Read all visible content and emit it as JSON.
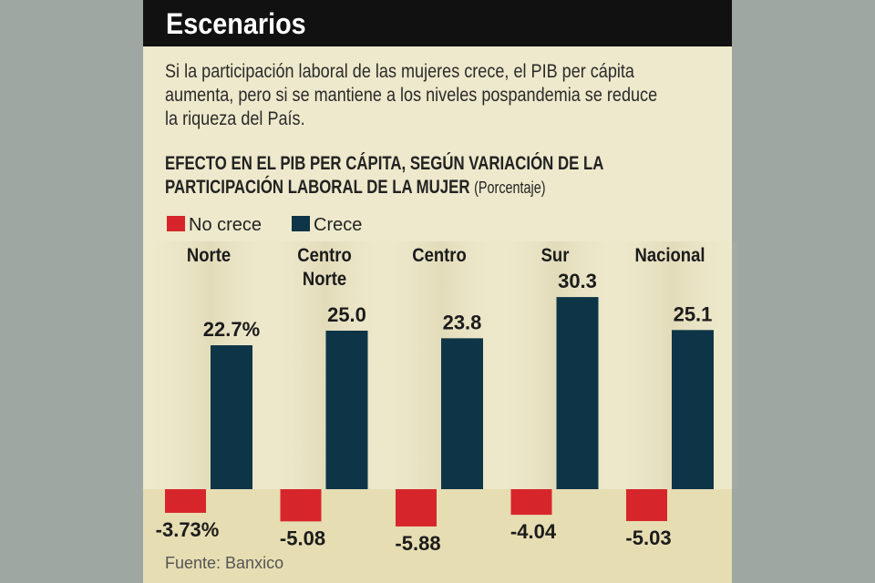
{
  "header": {
    "title": "Escenarios",
    "subtitle": "Si la participación laboral de las mujeres crece, el PIB per cápita aumenta, pero si se mantiene a los niveles pospandemia se reduce la riqueza del País."
  },
  "chart_data": {
    "type": "bar",
    "title": "EFECTO EN EL PIB PER CÁPITA, SEGÚN VARIACIÓN DE LA PARTICIPACIÓN LABORAL DE LA MUJER",
    "unit": "(Porcentaje)",
    "categories": [
      "Norte",
      "Centro Norte",
      "Centro",
      "Sur",
      "Nacional"
    ],
    "series": [
      {
        "name": "No crece",
        "color": "#d7262b",
        "values": [
          -3.73,
          -5.08,
          -5.88,
          -4.04,
          -5.03
        ],
        "value_labels": [
          "-3.73%",
          "-5.08",
          "-5.88",
          "-4.04",
          "-5.03"
        ]
      },
      {
        "name": "Crece",
        "color": "#0d3547",
        "values": [
          22.7,
          25.0,
          23.8,
          30.3,
          25.1
        ],
        "value_labels": [
          "22.7%",
          "25.0",
          "23.8",
          "30.3",
          "25.1"
        ]
      }
    ],
    "source": "Fuente: Banxico"
  }
}
